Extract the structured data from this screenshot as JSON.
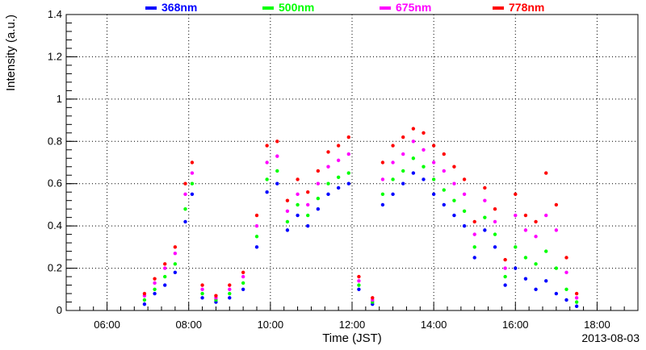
{
  "chart_data": {
    "type": "scatter",
    "xlabel": "Time (JST)",
    "ylabel": "Intensity (a.u.)",
    "date_label": "2013-08-03",
    "xlim": [
      "05:00",
      "19:00"
    ],
    "x_ticks": [
      "06:00",
      "08:00",
      "10:00",
      "12:00",
      "14:00",
      "16:00",
      "18:00"
    ],
    "ylim": [
      0,
      1.4
    ],
    "y_ticks": [
      "0",
      "0.2",
      "0.4",
      "0.6",
      "0.8",
      "1",
      "1.2",
      "1.4"
    ],
    "grid": true,
    "legend_position": "top",
    "series": [
      {
        "name": "368nm",
        "color": "#0000ff",
        "points": [
          [
            "06:55",
            0.03
          ],
          [
            "07:10",
            0.08
          ],
          [
            "07:25",
            0.12
          ],
          [
            "07:40",
            0.18
          ],
          [
            "07:55",
            0.42
          ],
          [
            "08:05",
            0.55
          ],
          [
            "08:20",
            0.06
          ],
          [
            "08:40",
            0.04
          ],
          [
            "09:00",
            0.06
          ],
          [
            "09:20",
            0.1
          ],
          [
            "09:40",
            0.3
          ],
          [
            "09:55",
            0.56
          ],
          [
            "10:10",
            0.6
          ],
          [
            "10:25",
            0.38
          ],
          [
            "10:40",
            0.45
          ],
          [
            "10:55",
            0.4
          ],
          [
            "11:10",
            0.48
          ],
          [
            "11:25",
            0.55
          ],
          [
            "11:40",
            0.58
          ],
          [
            "11:55",
            0.6
          ],
          [
            "12:10",
            0.1
          ],
          [
            "12:30",
            0.03
          ],
          [
            "12:45",
            0.5
          ],
          [
            "13:00",
            0.55
          ],
          [
            "13:15",
            0.6
          ],
          [
            "13:30",
            0.65
          ],
          [
            "13:45",
            0.62
          ],
          [
            "14:00",
            0.55
          ],
          [
            "14:15",
            0.5
          ],
          [
            "14:30",
            0.45
          ],
          [
            "14:45",
            0.4
          ],
          [
            "15:00",
            0.25
          ],
          [
            "15:15",
            0.38
          ],
          [
            "15:30",
            0.3
          ],
          [
            "15:45",
            0.12
          ],
          [
            "16:00",
            0.2
          ],
          [
            "16:15",
            0.15
          ],
          [
            "16:30",
            0.1
          ],
          [
            "16:45",
            0.14
          ],
          [
            "17:00",
            0.08
          ],
          [
            "17:15",
            0.05
          ],
          [
            "17:30",
            0.02
          ]
        ]
      },
      {
        "name": "500nm",
        "color": "#00ff00",
        "points": [
          [
            "06:55",
            0.05
          ],
          [
            "07:10",
            0.1
          ],
          [
            "07:25",
            0.16
          ],
          [
            "07:40",
            0.22
          ],
          [
            "07:55",
            0.48
          ],
          [
            "08:05",
            0.6
          ],
          [
            "08:20",
            0.08
          ],
          [
            "08:40",
            0.05
          ],
          [
            "09:00",
            0.08
          ],
          [
            "09:20",
            0.13
          ],
          [
            "09:40",
            0.35
          ],
          [
            "09:55",
            0.62
          ],
          [
            "10:10",
            0.66
          ],
          [
            "10:25",
            0.42
          ],
          [
            "10:40",
            0.5
          ],
          [
            "10:55",
            0.45
          ],
          [
            "11:10",
            0.53
          ],
          [
            "11:25",
            0.6
          ],
          [
            "11:40",
            0.63
          ],
          [
            "11:55",
            0.65
          ],
          [
            "12:10",
            0.12
          ],
          [
            "12:30",
            0.04
          ],
          [
            "12:45",
            0.55
          ],
          [
            "13:00",
            0.62
          ],
          [
            "13:15",
            0.66
          ],
          [
            "13:30",
            0.72
          ],
          [
            "13:45",
            0.68
          ],
          [
            "14:00",
            0.62
          ],
          [
            "14:15",
            0.57
          ],
          [
            "14:30",
            0.52
          ],
          [
            "14:45",
            0.47
          ],
          [
            "15:00",
            0.3
          ],
          [
            "15:15",
            0.44
          ],
          [
            "15:30",
            0.36
          ],
          [
            "15:45",
            0.16
          ],
          [
            "16:00",
            0.3
          ],
          [
            "16:15",
            0.25
          ],
          [
            "16:30",
            0.22
          ],
          [
            "16:45",
            0.28
          ],
          [
            "17:00",
            0.2
          ],
          [
            "17:15",
            0.1
          ],
          [
            "17:30",
            0.04
          ]
        ]
      },
      {
        "name": "675nm",
        "color": "#ff00ff",
        "points": [
          [
            "06:55",
            0.07
          ],
          [
            "07:10",
            0.13
          ],
          [
            "07:25",
            0.2
          ],
          [
            "07:40",
            0.27
          ],
          [
            "07:55",
            0.55
          ],
          [
            "08:05",
            0.65
          ],
          [
            "08:20",
            0.1
          ],
          [
            "08:40",
            0.06
          ],
          [
            "09:00",
            0.1
          ],
          [
            "09:20",
            0.16
          ],
          [
            "09:40",
            0.4
          ],
          [
            "09:55",
            0.7
          ],
          [
            "10:10",
            0.73
          ],
          [
            "10:25",
            0.47
          ],
          [
            "10:40",
            0.55
          ],
          [
            "10:55",
            0.5
          ],
          [
            "11:10",
            0.6
          ],
          [
            "11:25",
            0.68
          ],
          [
            "11:40",
            0.71
          ],
          [
            "11:55",
            0.74
          ],
          [
            "12:10",
            0.14
          ],
          [
            "12:30",
            0.05
          ],
          [
            "12:45",
            0.62
          ],
          [
            "13:00",
            0.7
          ],
          [
            "13:15",
            0.74
          ],
          [
            "13:30",
            0.8
          ],
          [
            "13:45",
            0.76
          ],
          [
            "14:00",
            0.7
          ],
          [
            "14:15",
            0.66
          ],
          [
            "14:30",
            0.6
          ],
          [
            "14:45",
            0.55
          ],
          [
            "15:00",
            0.36
          ],
          [
            "15:15",
            0.52
          ],
          [
            "15:30",
            0.42
          ],
          [
            "15:45",
            0.2
          ],
          [
            "16:00",
            0.45
          ],
          [
            "16:15",
            0.38
          ],
          [
            "16:30",
            0.35
          ],
          [
            "16:45",
            0.45
          ],
          [
            "17:00",
            0.38
          ],
          [
            "17:15",
            0.18
          ],
          [
            "17:30",
            0.06
          ]
        ]
      },
      {
        "name": "778nm",
        "color": "#ff0000",
        "points": [
          [
            "06:55",
            0.08
          ],
          [
            "07:10",
            0.15
          ],
          [
            "07:25",
            0.22
          ],
          [
            "07:40",
            0.3
          ],
          [
            "07:55",
            0.6
          ],
          [
            "08:05",
            0.7
          ],
          [
            "08:20",
            0.12
          ],
          [
            "08:40",
            0.07
          ],
          [
            "09:00",
            0.12
          ],
          [
            "09:20",
            0.18
          ],
          [
            "09:40",
            0.45
          ],
          [
            "09:55",
            0.78
          ],
          [
            "10:10",
            0.8
          ],
          [
            "10:25",
            0.52
          ],
          [
            "10:40",
            0.62
          ],
          [
            "10:55",
            0.56
          ],
          [
            "11:10",
            0.66
          ],
          [
            "11:25",
            0.75
          ],
          [
            "11:40",
            0.78
          ],
          [
            "11:55",
            0.82
          ],
          [
            "12:10",
            0.16
          ],
          [
            "12:30",
            0.06
          ],
          [
            "12:45",
            0.7
          ],
          [
            "13:00",
            0.78
          ],
          [
            "13:15",
            0.82
          ],
          [
            "13:30",
            0.86
          ],
          [
            "13:45",
            0.84
          ],
          [
            "14:00",
            0.78
          ],
          [
            "14:15",
            0.74
          ],
          [
            "14:30",
            0.68
          ],
          [
            "14:45",
            0.62
          ],
          [
            "15:00",
            0.42
          ],
          [
            "15:15",
            0.58
          ],
          [
            "15:30",
            0.48
          ],
          [
            "15:45",
            0.24
          ],
          [
            "16:00",
            0.55
          ],
          [
            "16:15",
            0.45
          ],
          [
            "16:30",
            0.42
          ],
          [
            "16:45",
            0.65
          ],
          [
            "17:00",
            0.5
          ],
          [
            "17:15",
            0.25
          ],
          [
            "17:30",
            0.08
          ]
        ]
      }
    ]
  }
}
